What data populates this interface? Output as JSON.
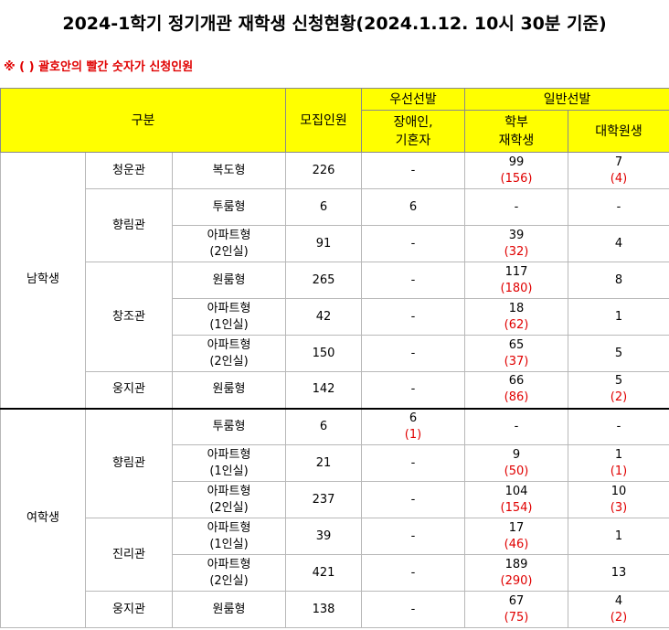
{
  "title": "2024-1학기 정기개관 재학생 신청현황(2024.1.12. 10시 30분 기준)",
  "note": "※ ( ) 괄호안의 빨간 숫자가 신청인원",
  "header": {
    "gubun": "구분",
    "capacity": "모집인원",
    "priority": "우선선발",
    "priority_sub": [
      "장애인,",
      "기혼자"
    ],
    "general": "일반선발",
    "undergrad": [
      "학부",
      "재학생"
    ],
    "grad": "대학원생"
  },
  "groups": {
    "male": "남학생",
    "female": "여학생"
  },
  "rows": [
    {
      "hall": "청운관",
      "type": [
        "복도형"
      ],
      "cap": "226",
      "pri": "-",
      "pri_app": "",
      "ug": "99",
      "ug_app": "(156)",
      "gr": "7",
      "gr_app": "(4)"
    },
    {
      "hall": "향림관",
      "type": [
        "투룸형"
      ],
      "cap": "6",
      "pri": "6",
      "pri_app": "",
      "ug": "-",
      "ug_app": "",
      "gr": "-",
      "gr_app": ""
    },
    {
      "hall": "",
      "type": [
        "아파트형",
        "(2인실)"
      ],
      "cap": "91",
      "pri": "-",
      "pri_app": "",
      "ug": "39",
      "ug_app": "(32)",
      "gr": "4",
      "gr_app": ""
    },
    {
      "hall": "창조관",
      "type": [
        "원룸형"
      ],
      "cap": "265",
      "pri": "-",
      "pri_app": "",
      "ug": "117",
      "ug_app": "(180)",
      "gr": "8",
      "gr_app": ""
    },
    {
      "hall": "",
      "type": [
        "아파트형",
        "(1인실)"
      ],
      "cap": "42",
      "pri": "-",
      "pri_app": "",
      "ug": "18",
      "ug_app": "(62)",
      "gr": "1",
      "gr_app": ""
    },
    {
      "hall": "",
      "type": [
        "아파트형",
        "(2인실)"
      ],
      "cap": "150",
      "pri": "-",
      "pri_app": "",
      "ug": "65",
      "ug_app": "(37)",
      "gr": "5",
      "gr_app": ""
    },
    {
      "hall": "웅지관",
      "type": [
        "원룸형"
      ],
      "cap": "142",
      "pri": "-",
      "pri_app": "",
      "ug": "66",
      "ug_app": "(86)",
      "gr": "5",
      "gr_app": "(2)"
    },
    {
      "hall": "향림관",
      "type": [
        "투룸형"
      ],
      "cap": "6",
      "pri": "6",
      "pri_app": "(1)",
      "ug": "-",
      "ug_app": "",
      "gr": "-",
      "gr_app": ""
    },
    {
      "hall": "",
      "type": [
        "아파트형",
        "(1인실)"
      ],
      "cap": "21",
      "pri": "-",
      "pri_app": "",
      "ug": "9",
      "ug_app": "(50)",
      "gr": "1",
      "gr_app": "(1)"
    },
    {
      "hall": "",
      "type": [
        "아파트형",
        "(2인실)"
      ],
      "cap": "237",
      "pri": "-",
      "pri_app": "",
      "ug": "104",
      "ug_app": "(154)",
      "gr": "10",
      "gr_app": "(3)"
    },
    {
      "hall": "진리관",
      "type": [
        "아파트형",
        "(1인실)"
      ],
      "cap": "39",
      "pri": "-",
      "pri_app": "",
      "ug": "17",
      "ug_app": "(46)",
      "gr": "1",
      "gr_app": ""
    },
    {
      "hall": "",
      "type": [
        "아파트형",
        "(2인실)"
      ],
      "cap": "421",
      "pri": "-",
      "pri_app": "",
      "ug": "189",
      "ug_app": "(290)",
      "gr": "13",
      "gr_app": ""
    },
    {
      "hall": "웅지관",
      "type": [
        "원룸형"
      ],
      "cap": "138",
      "pri": "-",
      "pri_app": "",
      "ug": "67",
      "ug_app": "(75)",
      "gr": "4",
      "gr_app": "(2)"
    }
  ]
}
